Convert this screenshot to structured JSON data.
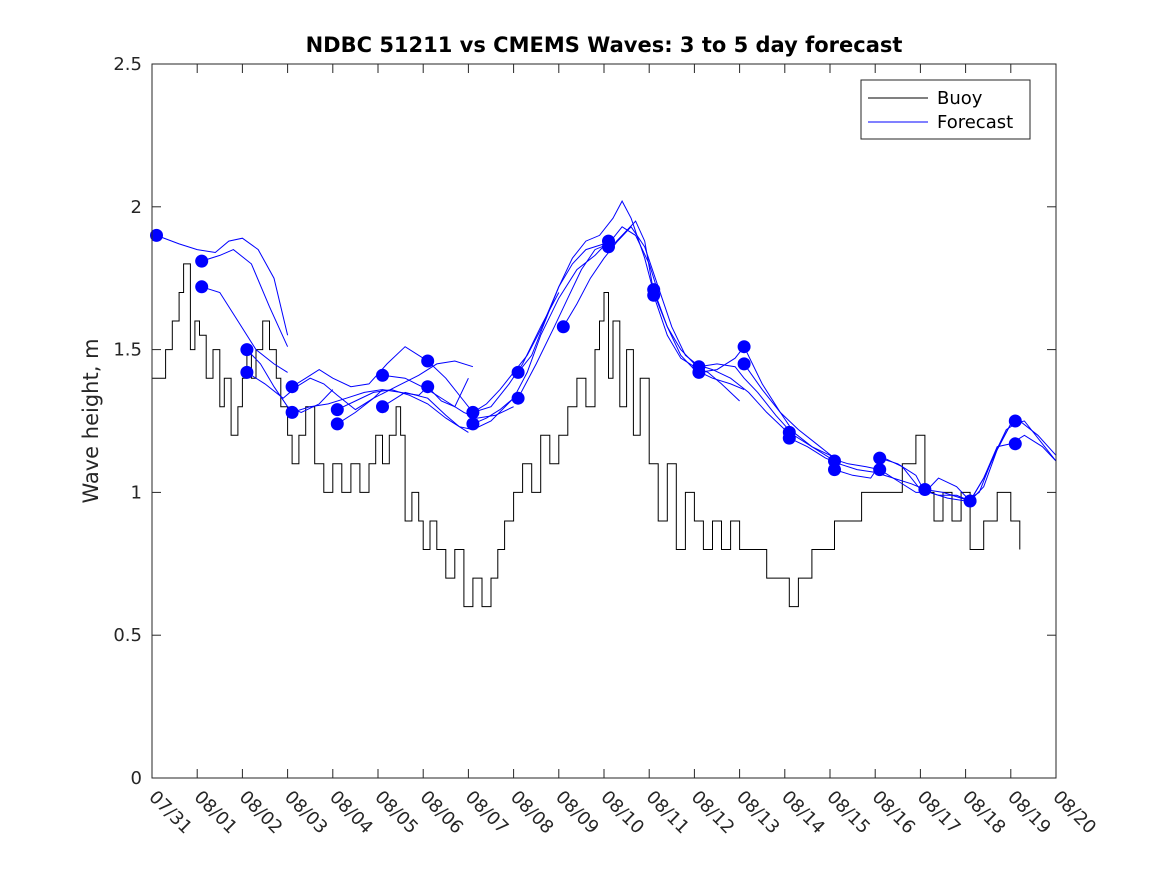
{
  "chart_data": {
    "type": "line",
    "title": "NDBC 51211 vs CMEMS Waves: 3 to 5 day forecast",
    "xlabel": "",
    "ylabel": "Wave height, m",
    "xlim": [
      0,
      20
    ],
    "ylim": [
      0,
      2.5
    ],
    "categories": [
      "07/31",
      "08/01",
      "08/02",
      "08/03",
      "08/04",
      "08/05",
      "08/06",
      "08/07",
      "08/08",
      "08/09",
      "08/10",
      "08/11",
      "08/12",
      "08/13",
      "08/14",
      "08/15",
      "08/16",
      "08/17",
      "08/18",
      "08/19",
      "08/20"
    ],
    "yticks": [
      "0",
      "0.5",
      "1",
      "1.5",
      "2",
      "2.5"
    ],
    "legend_position": "top-right",
    "colors": {
      "buoy": "#000000",
      "forecast": "#0000ff"
    },
    "series": [
      {
        "name": "Buoy",
        "style": "step",
        "x": [
          0.0,
          0.3,
          0.45,
          0.6,
          0.7,
          0.85,
          0.95,
          1.05,
          1.2,
          1.35,
          1.5,
          1.6,
          1.75,
          1.9,
          2.0,
          2.1,
          2.2,
          2.3,
          2.45,
          2.6,
          2.75,
          2.85,
          3.0,
          3.1,
          3.25,
          3.4,
          3.6,
          3.8,
          4.0,
          4.2,
          4.4,
          4.6,
          4.8,
          4.95,
          5.1,
          5.25,
          5.4,
          5.5,
          5.6,
          5.75,
          5.9,
          6.0,
          6.15,
          6.3,
          6.5,
          6.7,
          6.9,
          7.1,
          7.3,
          7.5,
          7.65,
          7.8,
          8.0,
          8.2,
          8.4,
          8.6,
          8.8,
          9.0,
          9.2,
          9.4,
          9.6,
          9.8,
          9.9,
          10.0,
          10.1,
          10.2,
          10.35,
          10.5,
          10.65,
          10.8,
          11.0,
          11.2,
          11.4,
          11.6,
          11.8,
          12.0,
          12.2,
          12.4,
          12.6,
          12.8,
          13.0,
          13.3,
          13.6,
          13.9,
          14.1,
          14.3,
          14.6,
          14.9,
          15.1,
          15.4,
          15.7,
          16.0,
          16.3,
          16.6,
          16.9,
          17.1,
          17.3,
          17.5,
          17.7,
          17.9,
          18.1,
          18.4,
          18.7,
          19.0,
          19.2
        ],
        "y": [
          1.4,
          1.5,
          1.6,
          1.7,
          1.8,
          1.5,
          1.6,
          1.55,
          1.4,
          1.5,
          1.3,
          1.4,
          1.2,
          1.3,
          1.4,
          1.5,
          1.4,
          1.5,
          1.6,
          1.5,
          1.4,
          1.3,
          1.2,
          1.1,
          1.2,
          1.3,
          1.1,
          1.0,
          1.1,
          1.0,
          1.1,
          1.0,
          1.1,
          1.2,
          1.1,
          1.2,
          1.3,
          1.2,
          0.9,
          1.0,
          0.9,
          0.8,
          0.9,
          0.8,
          0.7,
          0.8,
          0.6,
          0.7,
          0.6,
          0.7,
          0.8,
          0.9,
          1.0,
          1.1,
          1.0,
          1.2,
          1.1,
          1.2,
          1.3,
          1.4,
          1.3,
          1.5,
          1.6,
          1.7,
          1.4,
          1.6,
          1.3,
          1.5,
          1.2,
          1.4,
          1.1,
          0.9,
          1.1,
          0.8,
          1.0,
          0.9,
          0.8,
          0.9,
          0.8,
          0.9,
          0.8,
          0.8,
          0.7,
          0.7,
          0.6,
          0.7,
          0.8,
          0.8,
          0.9,
          0.9,
          1.0,
          1.0,
          1.0,
          1.1,
          1.2,
          1.0,
          0.9,
          1.0,
          0.9,
          1.0,
          0.8,
          0.9,
          1.0,
          0.9,
          0.8
        ]
      },
      {
        "name": "Forecast",
        "x": [
          0.1,
          0.6,
          1.0,
          1.4,
          1.7,
          2.0,
          2.35,
          2.7,
          3.0
        ],
        "y": [
          1.9,
          1.87,
          1.85,
          1.84,
          1.88,
          1.89,
          1.85,
          1.75,
          1.55
        ]
      },
      {
        "name": "Forecast",
        "x": [
          1.1,
          1.5,
          1.8,
          2.2,
          2.6,
          3.0
        ],
        "y": [
          1.81,
          1.83,
          1.85,
          1.8,
          1.65,
          1.51
        ]
      },
      {
        "name": "Forecast",
        "x": [
          1.1,
          1.5,
          1.9,
          2.3,
          2.7,
          3.0
        ],
        "y": [
          1.72,
          1.7,
          1.6,
          1.5,
          1.45,
          1.42
        ]
      },
      {
        "name": "Forecast",
        "x": [
          2.1,
          2.4,
          2.7,
          3.0,
          3.3,
          3.7,
          4.0
        ],
        "y": [
          1.5,
          1.45,
          1.37,
          1.3,
          1.28,
          1.31,
          1.36
        ]
      },
      {
        "name": "Forecast",
        "x": [
          2.1,
          2.5,
          2.9,
          3.2,
          3.5,
          3.8,
          4.1,
          4.5,
          4.9,
          5.1
        ],
        "y": [
          1.42,
          1.38,
          1.33,
          1.37,
          1.4,
          1.38,
          1.34,
          1.29,
          1.33,
          1.36
        ]
      },
      {
        "name": "Forecast",
        "x": [
          3.1,
          3.4,
          3.7,
          4.0,
          4.4,
          4.8,
          5.2,
          5.6,
          6.0
        ],
        "y": [
          1.37,
          1.4,
          1.43,
          1.4,
          1.37,
          1.38,
          1.45,
          1.51,
          1.47
        ]
      },
      {
        "name": "Forecast",
        "x": [
          3.1,
          3.5,
          3.9,
          4.3,
          4.7,
          5.1,
          5.5,
          5.9,
          6.1
        ],
        "y": [
          1.28,
          1.3,
          1.31,
          1.33,
          1.35,
          1.36,
          1.35,
          1.34,
          1.37
        ]
      },
      {
        "name": "Forecast",
        "x": [
          4.1,
          4.5,
          4.9,
          5.3,
          5.7,
          6.1,
          6.5,
          7.0
        ],
        "y": [
          1.29,
          1.32,
          1.35,
          1.36,
          1.34,
          1.31,
          1.26,
          1.21
        ]
      },
      {
        "name": "Forecast",
        "x": [
          4.1,
          4.5,
          4.9,
          5.4,
          5.9,
          6.3,
          6.7,
          7.1
        ],
        "y": [
          1.24,
          1.28,
          1.33,
          1.37,
          1.41,
          1.45,
          1.46,
          1.44
        ]
      },
      {
        "name": "Forecast",
        "x": [
          5.1,
          5.6,
          6.1,
          6.5,
          6.9,
          7.2,
          7.6,
          8.0
        ],
        "y": [
          1.41,
          1.4,
          1.36,
          1.32,
          1.28,
          1.26,
          1.27,
          1.3
        ]
      },
      {
        "name": "Forecast",
        "x": [
          5.1,
          5.6,
          6.1,
          6.5,
          6.8,
          7.1,
          7.5,
          8.0
        ],
        "y": [
          1.3,
          1.35,
          1.33,
          1.27,
          1.23,
          1.22,
          1.25,
          1.33
        ]
      },
      {
        "name": "Forecast",
        "x": [
          6.1,
          6.5,
          6.9,
          7.1,
          7.5,
          7.9,
          8.2,
          8.6,
          9.0
        ],
        "y": [
          1.46,
          1.4,
          1.32,
          1.28,
          1.3,
          1.38,
          1.45,
          1.58,
          1.7
        ]
      },
      {
        "name": "Forecast",
        "x": [
          6.1,
          6.4,
          6.7,
          7.0
        ],
        "y": [
          1.37,
          1.32,
          1.3,
          1.4
        ]
      },
      {
        "name": "Forecast",
        "x": [
          7.1,
          7.4,
          7.7,
          8.0,
          8.3,
          8.6,
          9.0,
          9.3,
          9.6,
          10.0
        ],
        "y": [
          1.28,
          1.31,
          1.36,
          1.42,
          1.48,
          1.57,
          1.72,
          1.8,
          1.85,
          1.87
        ]
      },
      {
        "name": "Forecast",
        "x": [
          7.1,
          7.4,
          7.7,
          8.0,
          8.3,
          8.6,
          9.0,
          9.4,
          9.8,
          10.1
        ],
        "y": [
          1.24,
          1.26,
          1.29,
          1.33,
          1.42,
          1.55,
          1.68,
          1.78,
          1.83,
          1.88
        ]
      },
      {
        "name": "Forecast",
        "x": [
          8.1,
          8.4,
          8.7,
          9.0,
          9.3,
          9.6,
          9.9,
          10.2,
          10.4,
          10.6,
          10.9,
          11.1
        ],
        "y": [
          1.42,
          1.48,
          1.6,
          1.72,
          1.82,
          1.88,
          1.9,
          1.96,
          2.02,
          1.96,
          1.82,
          1.7
        ]
      },
      {
        "name": "Forecast",
        "x": [
          8.1,
          8.5,
          8.9,
          9.2,
          9.5,
          9.8,
          10.1,
          10.4,
          10.7,
          11.0,
          11.2
        ],
        "y": [
          1.33,
          1.45,
          1.58,
          1.68,
          1.78,
          1.85,
          1.87,
          1.93,
          1.9,
          1.8,
          1.7
        ]
      },
      {
        "name": "Forecast",
        "x": [
          9.1,
          9.4,
          9.7,
          10.0,
          10.3,
          10.6,
          10.9,
          11.2,
          11.5,
          11.8,
          12.2
        ],
        "y": [
          1.58,
          1.66,
          1.75,
          1.82,
          1.88,
          1.93,
          1.86,
          1.72,
          1.58,
          1.48,
          1.43
        ]
      },
      {
        "name": "Forecast",
        "x": [
          10.1,
          10.4,
          10.7,
          10.9,
          11.1,
          11.4,
          11.7,
          12.0,
          12.4,
          12.8,
          13.1
        ],
        "y": [
          1.85,
          1.9,
          1.95,
          1.88,
          1.7,
          1.58,
          1.48,
          1.43,
          1.4,
          1.38,
          1.36
        ]
      },
      {
        "name": "Forecast",
        "x": [
          11.1,
          11.4,
          11.7,
          12.0,
          12.4,
          12.8,
          13.2,
          13.6,
          14.0,
          14.2
        ],
        "y": [
          1.71,
          1.58,
          1.5,
          1.45,
          1.43,
          1.4,
          1.35,
          1.28,
          1.22,
          1.2
        ]
      },
      {
        "name": "Forecast",
        "x": [
          11.1,
          11.4,
          11.7,
          12.0,
          12.3,
          12.6,
          13.0
        ],
        "y": [
          1.69,
          1.55,
          1.47,
          1.44,
          1.42,
          1.38,
          1.32
        ]
      },
      {
        "name": "Forecast",
        "x": [
          12.1,
          12.5,
          12.9,
          13.1,
          13.4,
          13.8,
          14.2,
          14.6,
          15.0,
          15.2
        ],
        "y": [
          1.44,
          1.45,
          1.44,
          1.4,
          1.35,
          1.27,
          1.2,
          1.16,
          1.13,
          1.12
        ]
      },
      {
        "name": "Forecast",
        "x": [
          12.1,
          12.5,
          12.9,
          13.1,
          13.5,
          13.9,
          14.3,
          14.7,
          15.1
        ],
        "y": [
          1.42,
          1.43,
          1.47,
          1.51,
          1.38,
          1.28,
          1.22,
          1.17,
          1.12
        ]
      },
      {
        "name": "Forecast",
        "x": [
          13.1,
          13.5,
          13.9,
          14.2,
          14.6,
          15.0,
          15.4,
          15.8,
          16.1
        ],
        "y": [
          1.45,
          1.36,
          1.28,
          1.21,
          1.16,
          1.12,
          1.1,
          1.09,
          1.08
        ]
      },
      {
        "name": "Forecast",
        "x": [
          14.1,
          14.5,
          14.9,
          15.2,
          15.6,
          16.0,
          16.4,
          16.8,
          17.1
        ],
        "y": [
          1.19,
          1.16,
          1.12,
          1.1,
          1.08,
          1.07,
          1.05,
          1.03,
          1.01
        ]
      },
      {
        "name": "Forecast",
        "x": [
          15.1,
          15.5,
          15.9,
          16.2,
          16.6,
          17.0,
          17.4,
          17.8,
          18.1
        ],
        "y": [
          1.08,
          1.06,
          1.05,
          1.12,
          1.09,
          1.01,
          0.99,
          0.99,
          0.97
        ]
      },
      {
        "name": "Forecast",
        "x": [
          16.1,
          16.5,
          16.9,
          17.1,
          17.4,
          17.8,
          18.1,
          18.4,
          18.7,
          19.0
        ],
        "y": [
          1.12,
          1.1,
          1.06,
          1.0,
          1.05,
          1.02,
          0.97,
          1.05,
          1.15,
          1.24
        ]
      },
      {
        "name": "Forecast",
        "x": [
          16.1,
          16.5,
          16.9,
          17.2,
          17.6,
          18.0,
          18.3,
          18.6,
          18.9,
          19.2,
          19.6,
          20.0
        ],
        "y": [
          1.08,
          1.04,
          1.0,
          1.0,
          0.98,
          0.97,
          1.0,
          1.12,
          1.22,
          1.25,
          1.2,
          1.13
        ]
      },
      {
        "name": "Forecast",
        "x": [
          17.1,
          17.5,
          17.9,
          18.1,
          18.4,
          18.7,
          19.0,
          19.3,
          19.7,
          20.0
        ],
        "y": [
          1.01,
          1.0,
          0.98,
          0.97,
          1.02,
          1.15,
          1.24,
          1.25,
          1.17,
          1.11
        ]
      },
      {
        "name": "Forecast",
        "x": [
          18.1,
          18.4,
          18.7,
          19.0,
          19.3,
          19.7,
          20.0
        ],
        "y": [
          0.97,
          1.05,
          1.16,
          1.17,
          1.2,
          1.16,
          1.11
        ]
      }
    ],
    "markers": {
      "x": [
        0.1,
        1.1,
        1.1,
        2.1,
        2.1,
        3.1,
        3.1,
        4.1,
        4.1,
        5.1,
        5.1,
        6.1,
        6.1,
        7.1,
        7.1,
        8.1,
        8.1,
        9.1,
        10.1,
        10.1,
        11.1,
        11.1,
        12.1,
        12.1,
        13.1,
        13.1,
        14.1,
        14.1,
        15.1,
        15.1,
        16.1,
        16.1,
        17.1,
        18.1,
        19.1,
        19.1
      ],
      "y": [
        1.9,
        1.81,
        1.72,
        1.5,
        1.42,
        1.37,
        1.28,
        1.29,
        1.24,
        1.41,
        1.3,
        1.46,
        1.37,
        1.28,
        1.24,
        1.42,
        1.33,
        1.58,
        1.88,
        1.86,
        1.71,
        1.69,
        1.44,
        1.42,
        1.51,
        1.45,
        1.21,
        1.19,
        1.11,
        1.08,
        1.12,
        1.08,
        1.01,
        0.97,
        1.25,
        1.17
      ]
    },
    "legend": [
      "Buoy",
      "Forecast"
    ]
  }
}
